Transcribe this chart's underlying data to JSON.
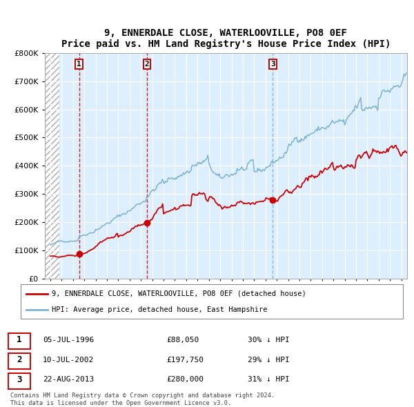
{
  "title": "9, ENNERDALE CLOSE, WATERLOOVILLE, PO8 0EF",
  "subtitle": "Price paid vs. HM Land Registry's House Price Index (HPI)",
  "ylim": [
    0,
    800000
  ],
  "yticks": [
    0,
    100000,
    200000,
    300000,
    400000,
    500000,
    600000,
    700000,
    800000
  ],
  "ytick_labels": [
    "£0",
    "£100K",
    "£200K",
    "£300K",
    "£400K",
    "£500K",
    "£600K",
    "£700K",
    "£800K"
  ],
  "hpi_color": "#7ab3d4",
  "price_color": "#cc0000",
  "sale_dates": [
    1996.53,
    2002.53,
    2013.64
  ],
  "sale_prices": [
    88050,
    197750,
    280000
  ],
  "sale_labels": [
    "1",
    "2",
    "3"
  ],
  "sale_dash_colors": [
    "#cc0000",
    "#cc0000",
    "#7ab3d4"
  ],
  "legend_price_label": "9, ENNERDALE CLOSE, WATERLOOVILLE, PO8 0EF (detached house)",
  "legend_hpi_label": "HPI: Average price, detached house, East Hampshire",
  "table_rows": [
    [
      "1",
      "05-JUL-1996",
      "£88,050",
      "30% ↓ HPI"
    ],
    [
      "2",
      "10-JUL-2002",
      "£197,750",
      "29% ↓ HPI"
    ],
    [
      "3",
      "22-AUG-2013",
      "£280,000",
      "31% ↓ HPI"
    ]
  ],
  "footer": "Contains HM Land Registry data © Crown copyright and database right 2024.\nThis data is licensed under the Open Government Licence v3.0.",
  "grid_color": "#c8d8e8",
  "chart_bg": "#ddeeff",
  "xlim_start": 1993.5,
  "xlim_end": 2025.5,
  "hatch_end": 1994.8
}
